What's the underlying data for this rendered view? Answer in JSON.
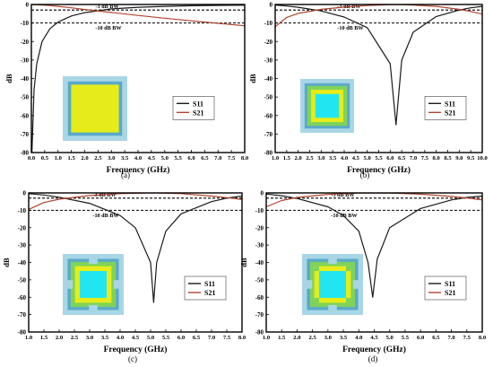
{
  "colors": {
    "s11": "#1a1a1a",
    "s21": "#b0442f",
    "frame": "#000000",
    "bw3": "#000000",
    "bw10": "#000000",
    "cell_outer": "#a9d6e6",
    "cell_border": "#5aa9c9",
    "cell_mid": "#e6ec1a",
    "cell_green": "#7fd35a",
    "cell_center": "#21e6f2"
  },
  "chart_data": [
    {
      "type": "line",
      "panel_label": "(a)",
      "xlabel": "Frequency (GHz)",
      "ylabel": "dB",
      "xlim": [
        0,
        8
      ],
      "ylim": [
        -80,
        0
      ],
      "xticks": [
        0,
        0.5,
        1,
        1.5,
        2,
        2.5,
        3,
        3.5,
        4,
        4.5,
        5,
        5.5,
        6,
        6.5,
        7,
        7.5,
        8
      ],
      "xtick_labels": [
        "0.0",
        "0.5",
        "1.0",
        "1.5",
        "2.0",
        "2.5",
        "3.0",
        "3.5",
        "4.0",
        "4.5",
        "5.0",
        "5.5",
        "6.0",
        "6.5",
        "7.0",
        "7.5",
        "8.0"
      ],
      "yticks": [
        0,
        -10,
        -20,
        -30,
        -40,
        -50,
        -60,
        -70,
        -80
      ],
      "legend": [
        "S11",
        "S21"
      ],
      "legend_position": "lower-right",
      "annotations": [
        {
          "text": "-3 dB BW",
          "y": -3
        },
        {
          "text": "-10 dB BW",
          "y": -10
        }
      ],
      "inset": "square ring cell",
      "series": [
        {
          "name": "S11",
          "x": [
            0.02,
            0.1,
            0.2,
            0.4,
            0.7,
            1.0,
            1.5,
            2.0,
            3.0,
            4.0,
            5.0,
            6.0,
            7.0,
            8.0
          ],
          "y": [
            -80,
            -46,
            -32,
            -20,
            -13,
            -9.5,
            -6.2,
            -4.4,
            -2.4,
            -1.5,
            -1.0,
            -0.7,
            -0.5,
            -0.4
          ]
        },
        {
          "name": "S21",
          "x": [
            0.02,
            0.3,
            0.7,
            1.0,
            1.5,
            2.0,
            3.0,
            4.0,
            5.0,
            6.0,
            7.0,
            8.0
          ],
          "y": [
            -0.05,
            -0.2,
            -0.6,
            -1.0,
            -1.8,
            -2.7,
            -4.3,
            -5.9,
            -7.4,
            -8.8,
            -10.2,
            -11.5
          ]
        }
      ]
    },
    {
      "type": "line",
      "panel_label": "(b)",
      "xlabel": "Frequency (GHz)",
      "ylabel": "dB",
      "xlim": [
        1,
        10
      ],
      "ylim": [
        -80,
        0
      ],
      "xticks": [
        1,
        1.5,
        2,
        2.5,
        3,
        3.5,
        4,
        4.5,
        5,
        5.5,
        6,
        6.5,
        7,
        7.5,
        8,
        8.5,
        9,
        9.5,
        10
      ],
      "xtick_labels": [
        "1.0",
        "1.5",
        "2.0",
        "2.5",
        "3.0",
        "3.5",
        "4.0",
        "4.5",
        "5.0",
        "5.5",
        "6.0",
        "6.5",
        "7.0",
        "7.5",
        "8.0",
        "8.5",
        "9.0",
        "9.5",
        "10.0"
      ],
      "yticks": [
        0,
        -10,
        -20,
        -30,
        -40,
        -50,
        -60,
        -70,
        -80
      ],
      "legend": [
        "S11",
        "S21"
      ],
      "legend_position": "lower-right",
      "annotations": [
        {
          "text": "-3 dB BW",
          "y": -3
        },
        {
          "text": "-10 dB BW",
          "y": -10
        }
      ],
      "inset": "square ring cell with green fill",
      "series": [
        {
          "name": "S11",
          "x": [
            1.0,
            1.5,
            2.0,
            3.0,
            4.0,
            5.0,
            6.0,
            6.25,
            6.5,
            7.0,
            8.0,
            9.0,
            9.5,
            10.0
          ],
          "y": [
            -0.3,
            -0.8,
            -1.5,
            -3.5,
            -6.8,
            -12.5,
            -32.0,
            -65.0,
            -30.0,
            -15.0,
            -6.5,
            -3.0,
            -1.8,
            -1.0
          ]
        },
        {
          "name": "S21",
          "x": [
            1.0,
            1.5,
            2.0,
            3.0,
            4.0,
            5.0,
            6.0,
            6.25,
            6.5,
            7.0,
            8.0,
            9.0,
            9.5,
            10.0
          ],
          "y": [
            -12,
            -7,
            -4.8,
            -2.6,
            -1.4,
            -0.6,
            -0.05,
            -0.02,
            -0.05,
            -0.3,
            -1.0,
            -2.6,
            -3.8,
            -5.2
          ]
        }
      ]
    },
    {
      "type": "line",
      "panel_label": "(c)",
      "xlabel": "Frequency (GHz)",
      "ylabel": "dB",
      "xlim": [
        1,
        8
      ],
      "ylim": [
        -80,
        0
      ],
      "xticks": [
        1,
        1.5,
        2,
        2.5,
        3,
        3.5,
        4,
        4.5,
        5,
        5.5,
        6,
        6.5,
        7,
        7.5,
        8
      ],
      "xtick_labels": [
        "1.0",
        "1.5",
        "2.0",
        "2.5",
        "3.0",
        "3.5",
        "4.0",
        "4.5",
        "5.0",
        "5.5",
        "6.0",
        "6.5",
        "7.0",
        "7.5",
        "8.0"
      ],
      "yticks": [
        0,
        -10,
        -20,
        -30,
        -40,
        -50,
        -60,
        -70,
        -80
      ],
      "legend": [
        "S11",
        "S21"
      ],
      "legend_position": "lower-right",
      "annotations": [
        {
          "text": "-3 dB BW",
          "y": -3
        },
        {
          "text": "-10 dB BW",
          "y": -10
        }
      ],
      "inset": "notched square ring cell",
      "series": [
        {
          "name": "S11",
          "x": [
            1.0,
            1.5,
            2.0,
            3.0,
            4.0,
            4.5,
            5.0,
            5.1,
            5.2,
            5.5,
            6.0,
            7.0,
            7.5,
            8.0
          ],
          "y": [
            -0.4,
            -1.2,
            -2.5,
            -6.0,
            -13.0,
            -20.0,
            -40.0,
            -63.0,
            -40.0,
            -22.0,
            -12.0,
            -5.0,
            -3.0,
            -1.8
          ]
        },
        {
          "name": "S21",
          "x": [
            1.0,
            1.5,
            2.0,
            3.0,
            4.0,
            5.0,
            5.1,
            5.2,
            6.0,
            7.0,
            7.5,
            8.0
          ],
          "y": [
            -9.5,
            -5.5,
            -3.6,
            -1.5,
            -0.4,
            -0.02,
            -0.01,
            -0.02,
            -0.4,
            -1.8,
            -2.7,
            -3.8
          ]
        }
      ]
    },
    {
      "type": "line",
      "panel_label": "(d)",
      "xlabel": "Frequency (GHz)",
      "ylabel": "dB",
      "xlim": [
        1,
        8
      ],
      "ylim": [
        -80,
        0
      ],
      "xticks": [
        1,
        1.5,
        2,
        2.5,
        3,
        3.5,
        4,
        4.5,
        5,
        5.5,
        6,
        6.5,
        7,
        7.5,
        8
      ],
      "xtick_labels": [
        "1.0",
        "1.5",
        "2.0",
        "2.5",
        "3.0",
        "3.5",
        "4.0",
        "4.5",
        "5.0",
        "5.5",
        "6.0",
        "6.5",
        "7.0",
        "7.5",
        "8.0"
      ],
      "yticks": [
        0,
        -10,
        -20,
        -30,
        -40,
        -50,
        -60,
        -70,
        -80
      ],
      "legend": [
        "S11",
        "S21"
      ],
      "legend_position": "lower-right",
      "annotations": [
        {
          "text": "-3 dB BW",
          "y": -3
        },
        {
          "text": "-10 dB BW",
          "y": -10
        }
      ],
      "inset": "notched square ring cell with extra stubs",
      "series": [
        {
          "name": "S11",
          "x": [
            1.0,
            1.5,
            2.0,
            3.0,
            3.5,
            4.0,
            4.3,
            4.45,
            4.6,
            5.0,
            6.0,
            7.0,
            7.5,
            8.0
          ],
          "y": [
            -0.6,
            -1.6,
            -3.2,
            -8.0,
            -13.0,
            -22.0,
            -40.0,
            -60.0,
            -38.0,
            -20.0,
            -9.0,
            -4.0,
            -2.6,
            -1.8
          ]
        },
        {
          "name": "S21",
          "x": [
            1.0,
            1.5,
            2.0,
            3.0,
            4.0,
            4.45,
            5.0,
            6.0,
            7.0,
            7.5,
            8.0
          ],
          "y": [
            -8.0,
            -4.4,
            -2.6,
            -0.8,
            -0.1,
            -0.02,
            -0.1,
            -0.7,
            -2.0,
            -2.9,
            -4.0
          ]
        }
      ]
    }
  ]
}
